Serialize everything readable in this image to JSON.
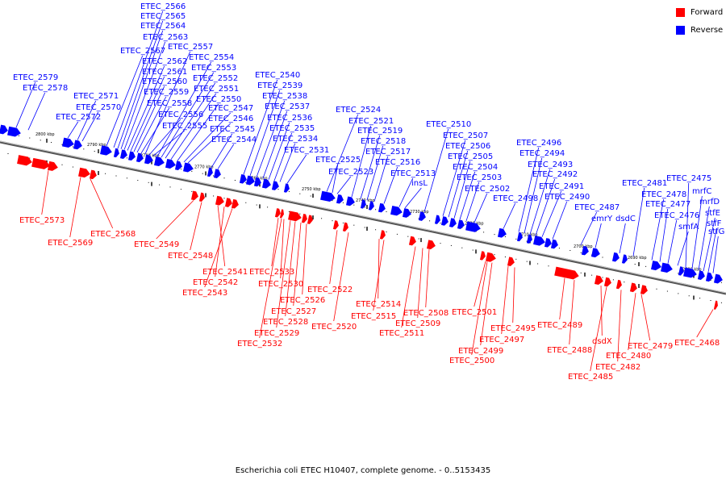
{
  "caption": "Escherichia coli ETEC H10407, complete genome. - 0..5153435",
  "legend": {
    "forward_label": "Forward",
    "reverse_label": "Reverse",
    "forward_color": "#ff0000",
    "reverse_color": "#0000ff"
  },
  "ticks": [
    "2800 kbp",
    "2790 kbp",
    "2780 kbp",
    "2770 kbp",
    "2760 kbp",
    "2750 kbp",
    "2740 kbp",
    "2730 kbp",
    "2720 kbp",
    "2710 kbp",
    "2700 kbp",
    "2690 kbp",
    "2680 kbp"
  ],
  "genes": [
    {
      "label": "ETEC_2579",
      "strand": "reverse"
    },
    {
      "label": "ETEC_2578",
      "strand": "reverse"
    },
    {
      "label": "ETEC_2572",
      "strand": "reverse"
    },
    {
      "label": "ETEC_2571",
      "strand": "reverse"
    },
    {
      "label": "ETEC_2570",
      "strand": "reverse"
    },
    {
      "label": "ETEC_2567",
      "strand": "reverse"
    },
    {
      "label": "ETEC_2566",
      "strand": "reverse"
    },
    {
      "label": "ETEC_2565",
      "strand": "reverse"
    },
    {
      "label": "ETEC_2564",
      "strand": "reverse"
    },
    {
      "label": "ETEC_2563",
      "strand": "reverse"
    },
    {
      "label": "ETEC_2562",
      "strand": "reverse"
    },
    {
      "label": "ETEC_2561",
      "strand": "reverse"
    },
    {
      "label": "ETEC_2560",
      "strand": "reverse"
    },
    {
      "label": "ETEC_2559",
      "strand": "reverse"
    },
    {
      "label": "ETEC_2558",
      "strand": "reverse"
    },
    {
      "label": "ETEC_2557",
      "strand": "reverse"
    },
    {
      "label": "ETEC_2556",
      "strand": "reverse"
    },
    {
      "label": "ETEC_2555",
      "strand": "reverse"
    },
    {
      "label": "ETEC_2554",
      "strand": "reverse"
    },
    {
      "label": "ETEC_2553",
      "strand": "reverse"
    },
    {
      "label": "ETEC_2552",
      "strand": "reverse"
    },
    {
      "label": "ETEC_2551",
      "strand": "reverse"
    },
    {
      "label": "ETEC_2550",
      "strand": "reverse"
    },
    {
      "label": "ETEC_2547",
      "strand": "reverse"
    },
    {
      "label": "ETEC_2546",
      "strand": "reverse"
    },
    {
      "label": "ETEC_2545",
      "strand": "reverse"
    },
    {
      "label": "ETEC_2544",
      "strand": "reverse"
    },
    {
      "label": "ETEC_2540",
      "strand": "reverse"
    },
    {
      "label": "ETEC_2539",
      "strand": "reverse"
    },
    {
      "label": "ETEC_2538",
      "strand": "reverse"
    },
    {
      "label": "ETEC_2537",
      "strand": "reverse"
    },
    {
      "label": "ETEC_2536",
      "strand": "reverse"
    },
    {
      "label": "ETEC_2535",
      "strand": "reverse"
    },
    {
      "label": "ETEC_2534",
      "strand": "reverse"
    },
    {
      "label": "ETEC_2531",
      "strand": "reverse"
    },
    {
      "label": "ETEC_2524",
      "strand": "reverse"
    },
    {
      "label": "ETEC_2525",
      "strand": "reverse"
    },
    {
      "label": "ETEC_2523",
      "strand": "reverse"
    },
    {
      "label": "ETEC_2521",
      "strand": "reverse"
    },
    {
      "label": "ETEC_2519",
      "strand": "reverse"
    },
    {
      "label": "ETEC_2518",
      "strand": "reverse"
    },
    {
      "label": "ETEC_2517",
      "strand": "reverse"
    },
    {
      "label": "ETEC_2516",
      "strand": "reverse"
    },
    {
      "label": "ETEC_2513",
      "strand": "reverse"
    },
    {
      "label": "insL",
      "strand": "reverse"
    },
    {
      "label": "ETEC_2510",
      "strand": "reverse"
    },
    {
      "label": "ETEC_2507",
      "strand": "reverse"
    },
    {
      "label": "ETEC_2506",
      "strand": "reverse"
    },
    {
      "label": "ETEC_2505",
      "strand": "reverse"
    },
    {
      "label": "ETEC_2504",
      "strand": "reverse"
    },
    {
      "label": "ETEC_2503",
      "strand": "reverse"
    },
    {
      "label": "ETEC_2502",
      "strand": "reverse"
    },
    {
      "label": "ETEC_2498",
      "strand": "reverse"
    },
    {
      "label": "ETEC_2496",
      "strand": "reverse"
    },
    {
      "label": "ETEC_2494",
      "strand": "reverse"
    },
    {
      "label": "ETEC_2493",
      "strand": "reverse"
    },
    {
      "label": "ETEC_2492",
      "strand": "reverse"
    },
    {
      "label": "ETEC_2491",
      "strand": "reverse"
    },
    {
      "label": "ETEC_2490",
      "strand": "reverse"
    },
    {
      "label": "ETEC_2487",
      "strand": "reverse"
    },
    {
      "label": "emrY",
      "strand": "reverse"
    },
    {
      "label": "dsdC",
      "strand": "reverse"
    },
    {
      "label": "ETEC_2481",
      "strand": "reverse"
    },
    {
      "label": "ETEC_2478",
      "strand": "reverse"
    },
    {
      "label": "ETEC_2477",
      "strand": "reverse"
    },
    {
      "label": "ETEC_2476",
      "strand": "reverse"
    },
    {
      "label": "smfA",
      "strand": "reverse"
    },
    {
      "label": "ETEC_2475",
      "strand": "reverse"
    },
    {
      "label": "mrfC",
      "strand": "reverse"
    },
    {
      "label": "mrfD",
      "strand": "reverse"
    },
    {
      "label": "stfE",
      "strand": "reverse"
    },
    {
      "label": "stfF",
      "strand": "reverse"
    },
    {
      "label": "stfG",
      "strand": "reverse"
    },
    {
      "label": "ETEC_2573",
      "strand": "forward"
    },
    {
      "label": "ETEC_2569",
      "strand": "forward"
    },
    {
      "label": "ETEC_2568",
      "strand": "forward"
    },
    {
      "label": "ETEC_2549",
      "strand": "forward"
    },
    {
      "label": "ETEC_2548",
      "strand": "forward"
    },
    {
      "label": "ETEC_2541",
      "strand": "forward"
    },
    {
      "label": "ETEC_2542",
      "strand": "forward"
    },
    {
      "label": "ETEC_2543",
      "strand": "forward"
    },
    {
      "label": "ETEC_2533",
      "strand": "forward"
    },
    {
      "label": "ETEC_2530",
      "strand": "forward"
    },
    {
      "label": "ETEC_2526",
      "strand": "forward"
    },
    {
      "label": "ETEC_2527",
      "strand": "forward"
    },
    {
      "label": "ETEC_2528",
      "strand": "forward"
    },
    {
      "label": "ETEC_2529",
      "strand": "forward"
    },
    {
      "label": "ETEC_2532",
      "strand": "forward"
    },
    {
      "label": "ETEC_2522",
      "strand": "forward"
    },
    {
      "label": "ETEC_2520",
      "strand": "forward"
    },
    {
      "label": "ETEC_2514",
      "strand": "forward"
    },
    {
      "label": "ETEC_2515",
      "strand": "forward"
    },
    {
      "label": "ETEC_2508",
      "strand": "forward"
    },
    {
      "label": "ETEC_2509",
      "strand": "forward"
    },
    {
      "label": "ETEC_2511",
      "strand": "forward"
    },
    {
      "label": "ETEC_2501",
      "strand": "forward"
    },
    {
      "label": "ETEC_2495",
      "strand": "forward"
    },
    {
      "label": "ETEC_2497",
      "strand": "forward"
    },
    {
      "label": "ETEC_2499",
      "strand": "forward"
    },
    {
      "label": "ETEC_2500",
      "strand": "forward"
    },
    {
      "label": "ETEC_2489",
      "strand": "forward"
    },
    {
      "label": "ETEC_2488",
      "strand": "forward"
    },
    {
      "label": "dsdX",
      "strand": "forward"
    },
    {
      "label": "ETEC_2485",
      "strand": "forward"
    },
    {
      "label": "ETEC_2482",
      "strand": "forward"
    },
    {
      "label": "ETEC_2480",
      "strand": "forward"
    },
    {
      "label": "ETEC_2479",
      "strand": "forward"
    },
    {
      "label": "ETEC_2468",
      "strand": "forward"
    }
  ]
}
